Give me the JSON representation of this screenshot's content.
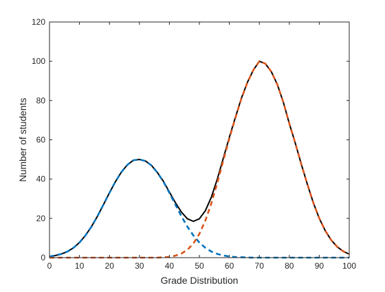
{
  "chart_data": {
    "type": "line",
    "title": "",
    "xlabel": "Grade Distribution",
    "ylabel": "Number of students",
    "xlim": [
      0,
      100
    ],
    "ylim": [
      0,
      120
    ],
    "xticks": [
      0,
      10,
      20,
      30,
      40,
      50,
      60,
      70,
      80,
      90,
      100
    ],
    "yticks": [
      0,
      20,
      40,
      60,
      80,
      100,
      120
    ],
    "grid": false,
    "legend": "none",
    "x": [
      0,
      2,
      4,
      6,
      8,
      10,
      12,
      14,
      16,
      18,
      20,
      22,
      24,
      26,
      28,
      30,
      32,
      34,
      36,
      38,
      40,
      42,
      44,
      46,
      48,
      50,
      52,
      54,
      56,
      58,
      60,
      62,
      64,
      66,
      68,
      70,
      72,
      74,
      76,
      78,
      80,
      82,
      84,
      86,
      88,
      90,
      92,
      94,
      96,
      98,
      100
    ],
    "series": [
      {
        "color": "#0072BD",
        "line_style": "dashed",
        "values": [
          0.6,
          1.1,
          1.9,
          3.1,
          5.0,
          7.7,
          11.3,
          15.8,
          21.1,
          27.0,
          33.0,
          38.7,
          43.6,
          47.3,
          49.6,
          50.0,
          49.2,
          47.0,
          43.3,
          38.7,
          33.0,
          27.0,
          21.1,
          15.8,
          11.3,
          7.7,
          5.0,
          3.1,
          1.9,
          1.1,
          0.6,
          0.3,
          0.2,
          0.1,
          0.0,
          0.0,
          0.0,
          0.0,
          0.0,
          0.0,
          0.0,
          0.0,
          0.0,
          0.0,
          0.0,
          0.0,
          0.0,
          0.0,
          0.0,
          0.0,
          0.0
        ]
      },
      {
        "color": "#D95319",
        "line_style": "dashed",
        "values": [
          0.0,
          0.0,
          0.0,
          0.0,
          0.0,
          0.0,
          0.0,
          0.0,
          0.0,
          0.0,
          0.0,
          0.0,
          0.0,
          0.0,
          0.0,
          0.0,
          0.0,
          0.0,
          0.0,
          0.2,
          0.4,
          1.0,
          2.1,
          4.0,
          7.2,
          12.1,
          18.9,
          27.7,
          38.2,
          49.6,
          60.7,
          71.1,
          80.9,
          89.1,
          95.5,
          100.0,
          98.8,
          94.7,
          88.2,
          79.2,
          68.3,
          58.3,
          47.6,
          37.5,
          28.0,
          20.0,
          13.7,
          8.9,
          5.5,
          3.2,
          1.8
        ]
      },
      {
        "color": "#000000",
        "line_style": "solid",
        "values": [
          0.6,
          1.1,
          1.9,
          3.1,
          5.0,
          7.7,
          11.3,
          15.8,
          21.1,
          27.0,
          33.0,
          38.7,
          43.6,
          47.3,
          49.6,
          50.0,
          49.2,
          47.0,
          43.3,
          38.9,
          33.4,
          28.0,
          23.2,
          19.8,
          18.5,
          19.8,
          23.9,
          30.8,
          40.1,
          50.7,
          61.3,
          71.4,
          81.1,
          89.2,
          95.5,
          100.0,
          98.8,
          94.7,
          88.2,
          79.2,
          68.3,
          58.3,
          47.6,
          37.5,
          28.0,
          20.0,
          13.7,
          8.9,
          5.5,
          3.2,
          1.8
        ]
      }
    ]
  }
}
